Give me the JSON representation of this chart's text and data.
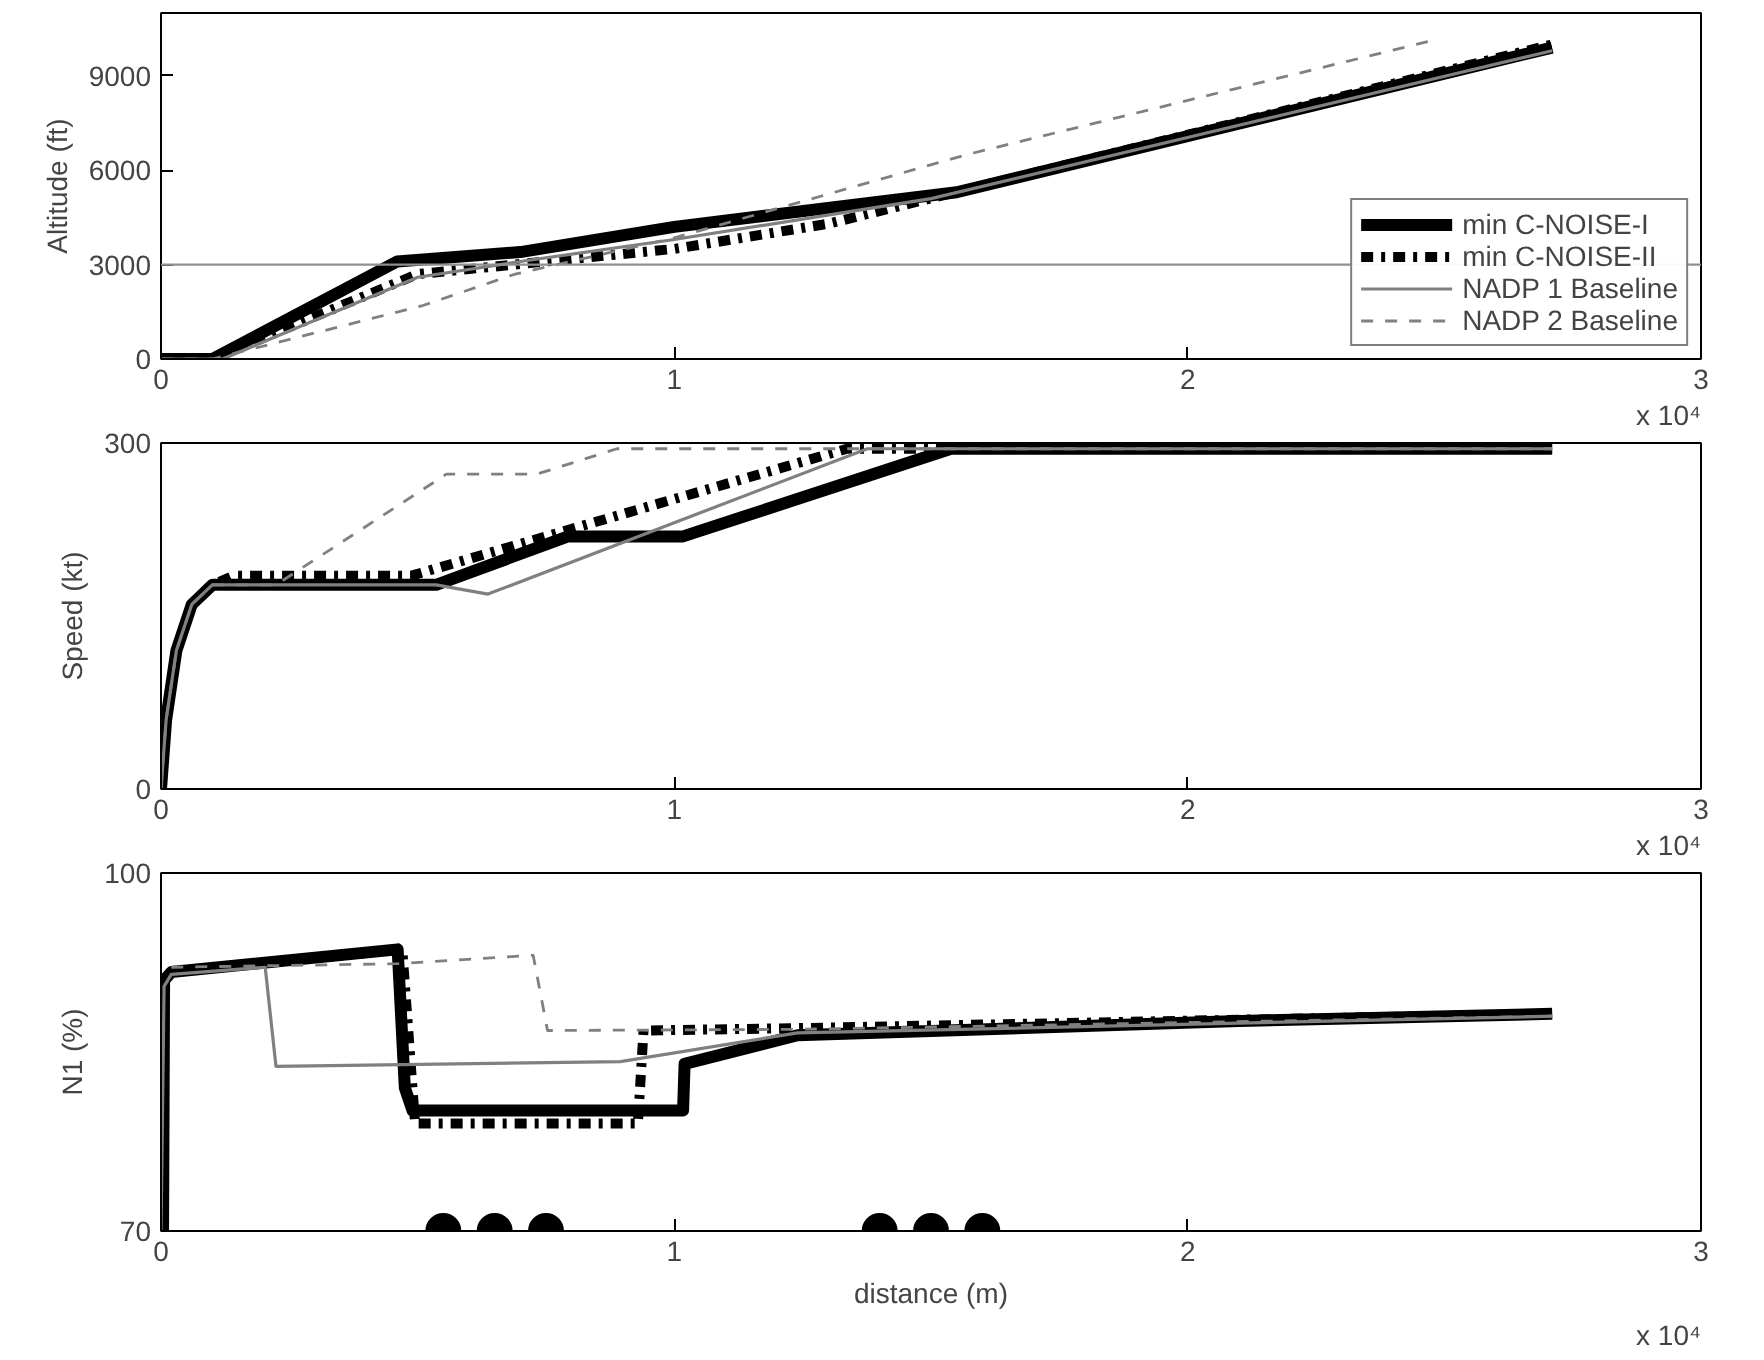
{
  "chart_data": [
    {
      "type": "line",
      "ylabel": "Altitude (ft)",
      "xlim": [
        0,
        3
      ],
      "ylim": [
        0,
        11000
      ],
      "xticks": [
        0,
        1,
        2,
        3
      ],
      "yticks": [
        0,
        3000,
        6000,
        9000
      ],
      "legend": "bottom right",
      "annotations": [
        "x 10⁴"
      ],
      "ref_lines": [
        {
          "axis": "y",
          "value": 3000,
          "color": "#909090"
        }
      ],
      "series": [
        {
          "name": "min C-NOISE-I",
          "color": "#000000",
          "line_style": "solid",
          "x": [
            0,
            0.1,
            0.46,
            0.7,
            1.0,
            1.2,
            1.55,
            2.71
          ],
          "values": [
            0,
            0,
            3100,
            3400,
            4200,
            4600,
            5300,
            9900
          ]
        },
        {
          "name": "min C-NOISE-II",
          "color": "#000000",
          "line_style": "dashdot",
          "x": [
            0,
            0.1,
            0.5,
            1.0,
            1.3,
            2.71
          ],
          "values": [
            0,
            0,
            2700,
            3500,
            4300,
            10000
          ]
        },
        {
          "name": "NADP 1 Baseline",
          "color": "#808080",
          "line_style": "solid",
          "x": [
            0,
            0.12,
            0.5,
            0.7,
            1.0,
            1.5,
            2.71
          ],
          "values": [
            0,
            0,
            2600,
            3100,
            3800,
            5100,
            9800
          ]
        },
        {
          "name": "NADP 2 Baseline",
          "color": "#808080",
          "line_style": "dashed",
          "x": [
            0,
            0.1,
            0.51,
            0.69,
            1.0,
            1.57,
            2.47
          ],
          "values": [
            0,
            0,
            1700,
            2700,
            3850,
            6500,
            10100
          ]
        }
      ]
    },
    {
      "type": "line",
      "ylabel": "Speed (kt)",
      "xlim": [
        0,
        3
      ],
      "ylim": [
        0,
        300
      ],
      "xticks": [
        0,
        1,
        2,
        3
      ],
      "yticks": [
        0,
        300
      ],
      "annotations": [
        "x 10⁴"
      ],
      "series": [
        {
          "color": "#000000",
          "line_style": "solid",
          "x": [
            0,
            0.01,
            0.03,
            0.06,
            0.1,
            0.536,
            0.793,
            1.017,
            1.539,
            2.71
          ],
          "values": [
            0,
            60,
            120,
            160,
            177,
            177,
            219,
            219,
            295,
            295
          ]
        },
        {
          "color": "#000000",
          "line_style": "dashdot",
          "x": [
            0,
            0.01,
            0.03,
            0.06,
            0.1,
            0.142,
            0.488,
            1.336,
            2.71
          ],
          "values": [
            0,
            60,
            120,
            160,
            177,
            185,
            185,
            295,
            295
          ]
        },
        {
          "color": "#808080",
          "line_style": "solid",
          "x": [
            0,
            0.01,
            0.03,
            0.06,
            0.1,
            0.536,
            0.637,
            1.376,
            2.71
          ],
          "values": [
            0,
            60,
            120,
            160,
            177,
            177,
            169,
            295,
            295
          ]
        },
        {
          "color": "#808080",
          "line_style": "dashed",
          "x": [
            0,
            0.01,
            0.03,
            0.06,
            0.1,
            0.224,
            0.556,
            0.732,
            0.888,
            2.71
          ],
          "values": [
            0,
            60,
            120,
            160,
            177,
            177,
            273,
            273,
            295,
            295
          ]
        }
      ]
    },
    {
      "type": "line",
      "ylabel": "N1 (%)",
      "xlabel": "distance (m)",
      "xlim": [
        0,
        3
      ],
      "ylim": [
        70,
        100
      ],
      "xticks": [
        0,
        1,
        2,
        3
      ],
      "yticks": [
        70,
        100
      ],
      "annotations": [
        "x 10⁴"
      ],
      "series": [
        {
          "color": "#000000",
          "line_style": "solid",
          "x": [
            0.004,
            0.006,
            0.02,
            0.461,
            0.475,
            0.49,
            1.017,
            1.02,
            1.24,
            2.1,
            2.71
          ],
          "values": [
            70,
            91,
            91.7,
            93.6,
            82,
            80.1,
            80.1,
            84,
            86.4,
            87.6,
            88.2
          ]
        },
        {
          "color": "#000000",
          "line_style": "dashdot",
          "x": [
            0.004,
            0.006,
            0.02,
            0.47,
            0.495,
            0.929,
            0.94,
            1.24,
            2.71
          ],
          "values": [
            70,
            91,
            91.7,
            93.6,
            79,
            79,
            86.8,
            87,
            88.2
          ]
        },
        {
          "color": "#808080",
          "line_style": "solid",
          "x": [
            0,
            0.006,
            0.02,
            0.203,
            0.224,
            0.895,
            1.24,
            2.71
          ],
          "values": [
            70,
            90.5,
            91.5,
            92.1,
            83.8,
            84.2,
            86.6,
            88
          ]
        },
        {
          "color": "#808080",
          "line_style": "dashed",
          "x": [
            0.02,
            0.461,
            0.725,
            0.753,
            1.24,
            2.71
          ],
          "values": [
            92.1,
            92.4,
            93.1,
            86.8,
            86.9,
            88
          ]
        },
        {
          "type": "scatter",
          "marker": "circle",
          "color": "#000000",
          "x": [
            0.55,
            0.65,
            0.75,
            1.4,
            1.5,
            1.6
          ],
          "values": [
            70,
            70,
            70,
            70,
            70,
            70
          ]
        }
      ]
    }
  ]
}
